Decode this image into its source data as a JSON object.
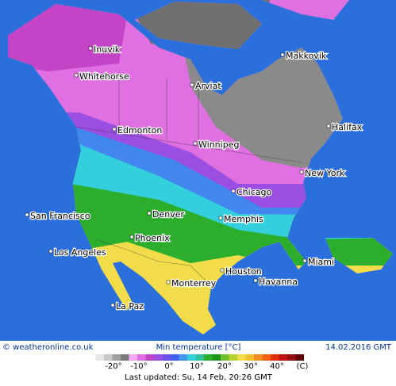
{
  "map": {
    "cities": [
      "Inuvik",
      "Whitehorse",
      "Arviat",
      "Makkovik",
      "Halifax",
      "Edmonton",
      "Winnipeg",
      "New York",
      "Chicago",
      "San Francisco",
      "Denver",
      "Memphis",
      "Phoenix",
      "Los Angeles",
      "Miami",
      "Houston",
      "Havanna",
      "Monterrey",
      "La Paz"
    ]
  },
  "footer": {
    "source": "© weatheronline.co.uk",
    "title": "Min temperature [°C]",
    "date": "14.02.2016 GMT",
    "legend": {
      "labels": [
        "-20°",
        "-10°",
        "0°",
        "10°",
        "20°",
        "30°",
        "40°"
      ],
      "unit": "(C)"
    },
    "updated": "Last updated: Su, 14 Feb, 20:26 GMT"
  }
}
